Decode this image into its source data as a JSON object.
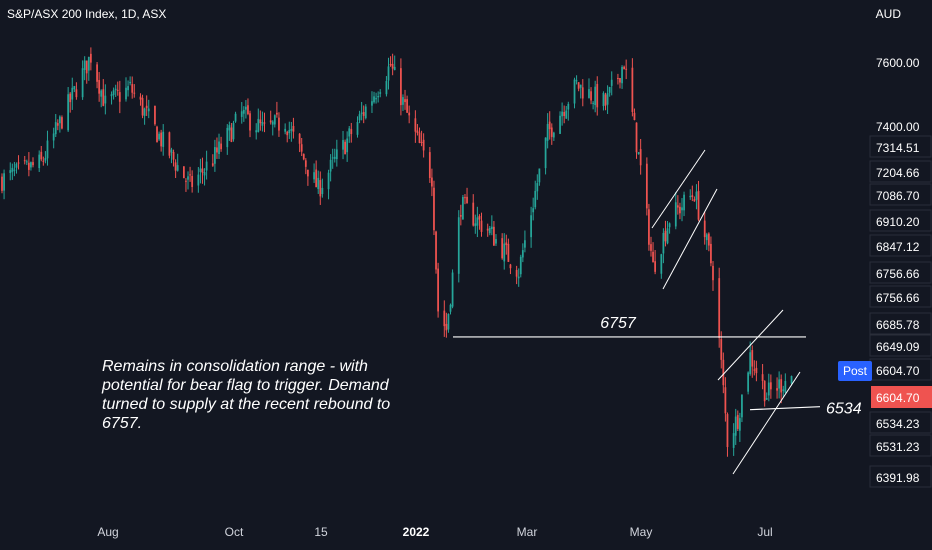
{
  "header": {
    "title": "S&P/ASX 200 Index, 1D, ASX",
    "currency": "AUD"
  },
  "annotation": "Remains in consolidation range - with potential for bear flag to trigger. Demand turned to supply at the recent rebound to 6757.",
  "post_label": "Post",
  "colors": {
    "background": "#131722",
    "up": "#26a69a",
    "down": "#ef5350",
    "text": "#d1d4dc",
    "post_blue": "#2962ff"
  },
  "chart_data": {
    "type": "candlestick",
    "title": "S&P/ASX 200 Index, 1D, ASX",
    "x_tick_labels": [
      "Aug",
      "Oct",
      "15",
      "2022",
      "Mar",
      "May",
      "Jul"
    ],
    "y_axis_labels": [
      "7600.00",
      "7400.00",
      "7314.51",
      "7204.66",
      "7086.70",
      "6910.20",
      "6847.12",
      "6756.66",
      "6756.66",
      "6685.78",
      "6649.09",
      "6604.70",
      "6604.70",
      "6534.23",
      "6531.23",
      "6391.98"
    ],
    "ylim": [
      6370,
      7680
    ],
    "price_path": [
      {
        "date": "2021-07-01",
        "value": 7240
      },
      {
        "date": "2021-07-20",
        "value": 7290
      },
      {
        "date": "2021-08-03",
        "value": 7480
      },
      {
        "date": "2021-08-13",
        "value": 7620
      },
      {
        "date": "2021-08-20",
        "value": 7470
      },
      {
        "date": "2021-09-01",
        "value": 7520
      },
      {
        "date": "2021-09-20",
        "value": 7320
      },
      {
        "date": "2021-09-30",
        "value": 7220
      },
      {
        "date": "2021-10-12",
        "value": 7310
      },
      {
        "date": "2021-10-25",
        "value": 7440
      },
      {
        "date": "2021-11-05",
        "value": 7390
      },
      {
        "date": "2021-11-15",
        "value": 7420
      },
      {
        "date": "2021-12-01",
        "value": 7210
      },
      {
        "date": "2021-12-15",
        "value": 7360
      },
      {
        "date": "2022-01-05",
        "value": 7590
      },
      {
        "date": "2022-01-14",
        "value": 7420
      },
      {
        "date": "2022-01-25",
        "value": 7250
      },
      {
        "date": "2022-01-28",
        "value": 6840
      },
      {
        "date": "2022-02-01",
        "value": 6780
      },
      {
        "date": "2022-02-08",
        "value": 7160
      },
      {
        "date": "2022-02-22",
        "value": 7080
      },
      {
        "date": "2022-03-08",
        "value": 6960
      },
      {
        "date": "2022-03-22",
        "value": 7380
      },
      {
        "date": "2022-04-05",
        "value": 7530
      },
      {
        "date": "2022-04-19",
        "value": 7470
      },
      {
        "date": "2022-04-28",
        "value": 7600
      },
      {
        "date": "2022-05-06",
        "value": 7270
      },
      {
        "date": "2022-05-12",
        "value": 6970
      },
      {
        "date": "2022-05-20",
        "value": 7120
      },
      {
        "date": "2022-06-01",
        "value": 7200
      },
      {
        "date": "2022-06-10",
        "value": 6960
      },
      {
        "date": "2022-06-14",
        "value": 6670
      },
      {
        "date": "2022-06-17",
        "value": 6440
      },
      {
        "date": "2022-06-22",
        "value": 6510
      },
      {
        "date": "2022-06-28",
        "value": 6700
      },
      {
        "date": "2022-07-06",
        "value": 6580
      },
      {
        "date": "2022-07-18",
        "value": 6640
      }
    ],
    "support_level": {
      "label": "6757",
      "value": 6757
    },
    "level_6534": {
      "label": "6534",
      "value": 6534
    },
    "current_price": "6604.70"
  }
}
